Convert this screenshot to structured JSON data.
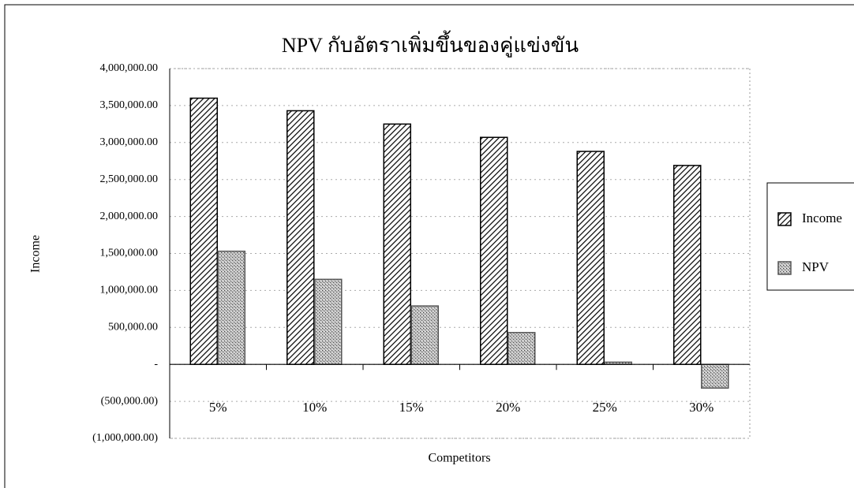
{
  "chart_data": {
    "type": "bar",
    "title": "NPV กับอัตราเพิ่มขึ้นของคู่แข่งขัน",
    "xlabel": "Competitors",
    "ylabel": "Income",
    "categories": [
      "5%",
      "10%",
      "15%",
      "20%",
      "25%",
      "30%"
    ],
    "series": [
      {
        "name": "Income",
        "color": "#000000",
        "pattern": "hatch",
        "values": [
          3600000,
          3430000,
          3250000,
          3070000,
          2880000,
          2690000
        ]
      },
      {
        "name": "NPV",
        "color": "#555555",
        "pattern": "stipple",
        "values": [
          1530000,
          1150000,
          790000,
          430000,
          30000,
          -320000
        ]
      }
    ],
    "ylim": [
      -1000000,
      4000000
    ],
    "yticks": [
      {
        "value": -1000000,
        "label": "(1,000,000.00)"
      },
      {
        "value": -500000,
        "label": "(500,000.00)"
      },
      {
        "value": 0,
        "label": "-"
      },
      {
        "value": 500000,
        "label": "500,000.00"
      },
      {
        "value": 1000000,
        "label": "1,000,000.00"
      },
      {
        "value": 1500000,
        "label": "1,500,000.00"
      },
      {
        "value": 2000000,
        "label": "2,000,000.00"
      },
      {
        "value": 2500000,
        "label": "2,500,000.00"
      },
      {
        "value": 3000000,
        "label": "3,000,000.00"
      },
      {
        "value": 3500000,
        "label": "3,500,000.00"
      },
      {
        "value": 4000000,
        "label": "4,000,000.00"
      }
    ],
    "grid": true,
    "legend": "right"
  }
}
